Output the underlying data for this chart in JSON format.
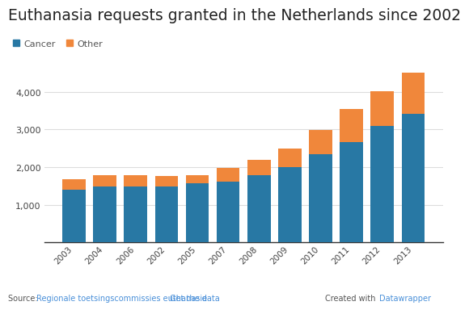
{
  "title": "Euthanasia requests granted in the Netherlands since 2002",
  "years": [
    "2003",
    "2004",
    "2006",
    "2002",
    "2005",
    "2007",
    "2008",
    "2009",
    "2010",
    "2011",
    "2012",
    "2013"
  ],
  "cancer": [
    1400,
    1490,
    1490,
    1490,
    1570,
    1620,
    1780,
    2000,
    2350,
    2660,
    3100,
    3420
  ],
  "other": [
    270,
    290,
    290,
    280,
    220,
    360,
    420,
    490,
    640,
    890,
    920,
    1080
  ],
  "cancer_color": "#2878a4",
  "other_color": "#f0873b",
  "ylim": [
    0,
    4700
  ],
  "yticks": [
    1000,
    2000,
    3000,
    4000
  ],
  "background_color": "#ffffff",
  "grid_color": "#dddddd",
  "title_fontsize": 13.5,
  "legend_labels": [
    "Cancer",
    "Other"
  ],
  "source_prefix": "Source: ",
  "source_link": "Regionale toetsingscommissies euthanasie",
  "source_link2": "Get the data",
  "footer_right": "Created with ",
  "footer_right_link": "Datawrapper",
  "link_color": "#4a90d9",
  "footer_text_color": "#555555"
}
